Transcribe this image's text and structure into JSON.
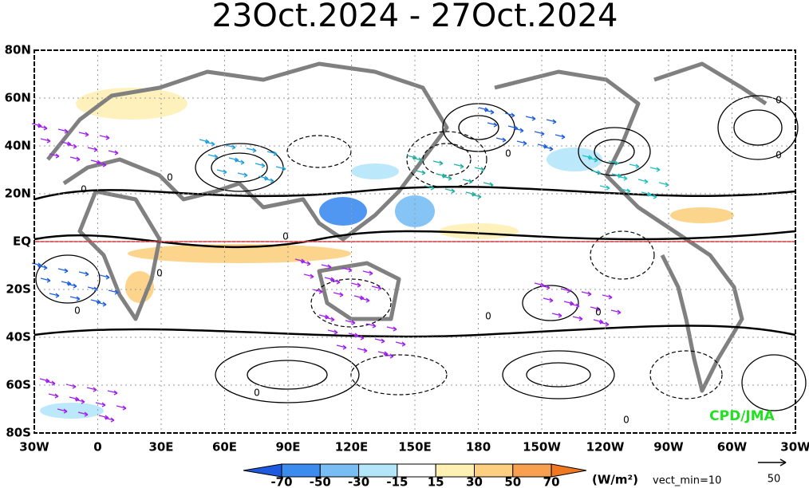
{
  "title": "23Oct.2024 - 27Oct.2024",
  "map": {
    "lat_labels": [
      "80N",
      "60N",
      "40N",
      "20N",
      "EQ",
      "20S",
      "40S",
      "60S",
      "80S"
    ],
    "lon_labels": [
      "30W",
      "0",
      "30E",
      "60E",
      "90E",
      "120E",
      "150E",
      "180",
      "150W",
      "120W",
      "90W",
      "60W",
      "30W"
    ],
    "contour_labels": [
      "0",
      "0",
      "0",
      "0",
      "0",
      "0",
      "0",
      "0",
      "0",
      "0",
      "0",
      "0"
    ],
    "credit": "CPD/JMA"
  },
  "colorbar": {
    "levels": [
      -70,
      -50,
      -30,
      -15,
      15,
      30,
      50,
      70
    ],
    "colors": [
      "#1e5ae0",
      "#3c8cf0",
      "#78bef5",
      "#b4e6fa",
      "#ffffff",
      "#fff0b4",
      "#fcd080",
      "#f8a050",
      "#f07820"
    ],
    "unit": "(W/m²)",
    "note": "vect_min=10"
  },
  "reference_vector": {
    "label": "50"
  }
}
